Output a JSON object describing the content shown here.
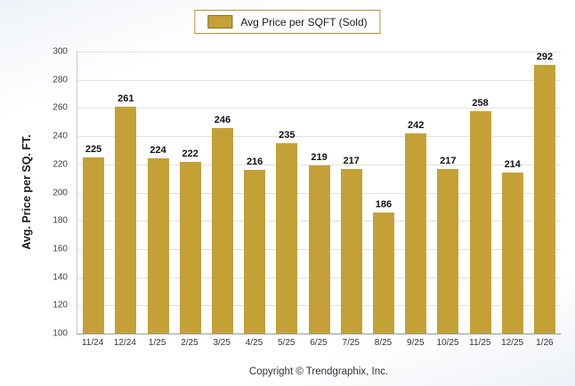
{
  "chart_data": {
    "type": "bar",
    "legend": "Avg Price per SQFT (Sold)",
    "categories": [
      "11/24",
      "12/24",
      "1/25",
      "2/25",
      "3/25",
      "4/25",
      "5/25",
      "6/25",
      "7/25",
      "8/25",
      "9/25",
      "10/25",
      "11/25",
      "12/25",
      "1/26"
    ],
    "values": [
      225,
      261,
      224,
      222,
      246,
      216,
      235,
      219,
      217,
      186,
      242,
      217,
      258,
      214,
      292
    ],
    "ylabel": "Avg. Price per SQ. FT.",
    "ylim": [
      100,
      300
    ],
    "ytick_step": 20,
    "bar_color": "#c4a136",
    "grid": "horizontal",
    "legend_position": "top-center",
    "footer": "Copyright © Trendgraphix, Inc."
  }
}
